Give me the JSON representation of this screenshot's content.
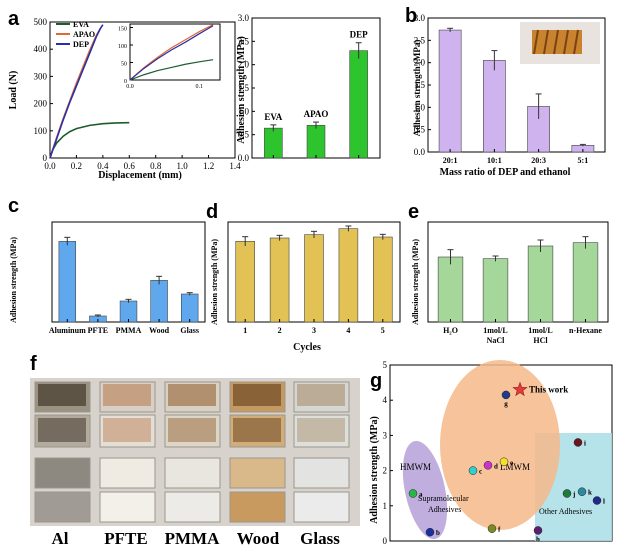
{
  "panel_letters": [
    "a",
    "b",
    "c",
    "d",
    "e",
    "f",
    "g"
  ],
  "chart_data": [
    {
      "id": "a1",
      "type": "line",
      "panel": "a",
      "xlabel": "Displacement (mm)",
      "ylabel": "Load (N)",
      "xlim": [
        0,
        1.4
      ],
      "ylim": [
        0,
        500
      ],
      "xticks": [
        "0.0",
        "0.2",
        "0.4",
        "0.6",
        "0.8",
        "1.0",
        "1.2",
        "1.4"
      ],
      "yticks": [
        "0",
        "100",
        "200",
        "300",
        "400",
        "500"
      ],
      "series": [
        {
          "name": "EVA",
          "color": "#1e5c2c",
          "x": [
            0,
            0.02,
            0.05,
            0.1,
            0.15,
            0.2,
            0.3,
            0.4,
            0.5,
            0.6
          ],
          "y": [
            0,
            30,
            55,
            80,
            97,
            108,
            120,
            126,
            129,
            130
          ]
        },
        {
          "name": "APAO",
          "color": "#e06b32",
          "x": [
            0,
            0.05,
            0.1,
            0.15,
            0.2,
            0.25,
            0.3,
            0.35,
            0.38
          ],
          "y": [
            0,
            75,
            145,
            210,
            275,
            335,
            395,
            450,
            475
          ]
        },
        {
          "name": "DEP",
          "color": "#2b2fa8",
          "x": [
            0,
            0.05,
            0.1,
            0.15,
            0.2,
            0.25,
            0.3,
            0.35,
            0.38,
            0.4
          ],
          "y": [
            0,
            70,
            140,
            205,
            265,
            325,
            385,
            445,
            475,
            490
          ]
        }
      ]
    },
    {
      "id": "a_inset",
      "type": "line",
      "panel": "a",
      "xlim": [
        0,
        0.13
      ],
      "ylim": [
        0,
        160
      ],
      "xticks": [
        "0.0",
        "0.1"
      ],
      "yticks": [
        "0",
        "50",
        "100",
        "150"
      ],
      "series": [
        {
          "name": "EVA",
          "color": "#1e5c2c",
          "x": [
            0,
            0.02,
            0.04,
            0.06,
            0.08,
            0.1,
            0.12
          ],
          "y": [
            0,
            15,
            27,
            36,
            45,
            52,
            58
          ]
        },
        {
          "name": "APAO",
          "color": "#e06b32",
          "x": [
            0,
            0.02,
            0.04,
            0.06,
            0.08,
            0.1,
            0.12
          ],
          "y": [
            0,
            35,
            65,
            92,
            115,
            138,
            158
          ]
        },
        {
          "name": "DEP",
          "color": "#2b2fa8",
          "x": [
            0,
            0.02,
            0.04,
            0.06,
            0.08,
            0.1,
            0.12
          ],
          "y": [
            0,
            33,
            61,
            86,
            108,
            132,
            155
          ]
        }
      ]
    },
    {
      "id": "a2",
      "type": "bar",
      "panel": "a",
      "ylabel": "Adhesion strength (MPa)",
      "ylim": [
        0,
        3.0
      ],
      "yticks": [
        "0.0",
        "0.5",
        "1.0",
        "1.5",
        "2.0",
        "2.5",
        "3.0"
      ],
      "categories": [
        "EVA",
        "APAO",
        "DEP"
      ],
      "values": [
        0.64,
        0.7,
        2.3
      ],
      "errors": [
        0.07,
        0.07,
        0.17
      ],
      "color": "#2ec42e"
    },
    {
      "id": "b",
      "type": "bar",
      "panel": "b",
      "xlabel": "Mass ratio of DEP and ethanol",
      "ylabel": "Adhesion strength (MPa)",
      "ylim": [
        0,
        3.0
      ],
      "yticks": [
        "0.0",
        "0.5",
        "1.0",
        "1.5",
        "2.0",
        "2.5",
        "3.0"
      ],
      "categories": [
        "20:1",
        "10:1",
        "20:3",
        "5:1"
      ],
      "values": [
        2.73,
        2.05,
        1.02,
        0.15
      ],
      "errors": [
        0.04,
        0.22,
        0.28,
        0.02
      ],
      "color": "#cfb3ef"
    },
    {
      "id": "c",
      "type": "bar",
      "panel": "c",
      "ylabel": "Adhesion strength (MPa)",
      "ylim": [
        0,
        3.0
      ],
      "categories": [
        "Aluminum",
        "PFTE",
        "PMMA",
        "Wood",
        "Glass"
      ],
      "values": [
        2.42,
        0.18,
        0.63,
        1.25,
        0.84
      ],
      "errors": [
        0.12,
        0.03,
        0.05,
        0.12,
        0.04
      ],
      "color": "#5fa8ee"
    },
    {
      "id": "d",
      "type": "bar",
      "panel": "d",
      "xlabel": "Cycles",
      "ylabel": "Adhesion strength (MPa)",
      "ylim": [
        0,
        3.0
      ],
      "categories": [
        "1",
        "2",
        "3",
        "4",
        "5"
      ],
      "values": [
        2.42,
        2.52,
        2.62,
        2.8,
        2.55
      ],
      "errors": [
        0.14,
        0.08,
        0.1,
        0.08,
        0.08
      ],
      "color": "#e2c255"
    },
    {
      "id": "e",
      "type": "bar",
      "panel": "e",
      "ylabel": "Adhesion strength (MPa)",
      "ylim": [
        0,
        3.0
      ],
      "categories": [
        [
          "H₂O"
        ],
        [
          "1mol/L",
          "NaCl"
        ],
        [
          "1mol/L",
          "HCl"
        ],
        [
          "n-Hexane"
        ]
      ],
      "values": [
        1.95,
        1.9,
        2.28,
        2.38
      ],
      "errors": [
        0.22,
        0.08,
        0.18,
        0.18
      ],
      "color": "#a6d79a"
    },
    {
      "id": "g",
      "type": "scatter",
      "panel": "g",
      "ylabel": "Adhesion strength (MPa)",
      "ylim": [
        0,
        5
      ],
      "yticks": [
        "0",
        "1",
        "2",
        "3",
        "4",
        "5"
      ],
      "regions": [
        "HMWM",
        "LMWM",
        "Supramolecular",
        "Adhesives",
        "Other Adhesives"
      ],
      "points": [
        {
          "label": "a",
          "y": 1.35,
          "color": "#28b54a"
        },
        {
          "label": "b",
          "y": 0.25,
          "color": "#1b2fa3"
        },
        {
          "label": "c",
          "y": 2.0,
          "color": "#2bd0cf"
        },
        {
          "label": "d",
          "y": 2.15,
          "color": "#cc33cc"
        },
        {
          "label": "e",
          "y": 2.25,
          "color": "#f4e22a"
        },
        {
          "label": "f",
          "y": 0.35,
          "color": "#7c8a22"
        },
        {
          "label": "g",
          "y": 4.15,
          "color": "#223a88"
        },
        {
          "label": "h",
          "y": 0.3,
          "color": "#5b1f6e"
        },
        {
          "label": "i",
          "y": 2.8,
          "color": "#6a1620"
        },
        {
          "label": "j",
          "y": 1.35,
          "color": "#1c7a3c"
        },
        {
          "label": "k",
          "y": 1.4,
          "color": "#2a8aa0"
        },
        {
          "label": "l",
          "y": 1.15,
          "color": "#1d2a8f"
        },
        {
          "label": "This work",
          "y": 4.3,
          "color": "#e23d3d",
          "marker": "star"
        }
      ]
    }
  ],
  "photo_labels": [
    "Al",
    "PFTE",
    "PMMA",
    "Wood",
    "Glass"
  ]
}
